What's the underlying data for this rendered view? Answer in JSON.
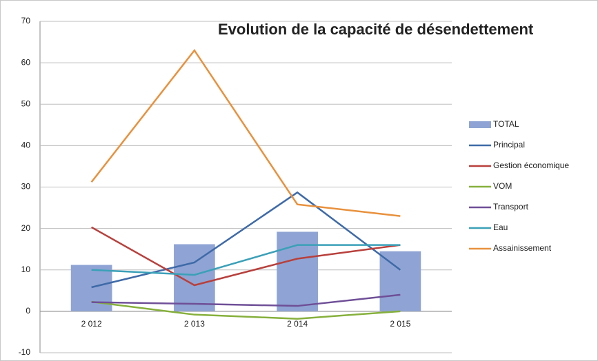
{
  "chart_data": {
    "type": "combo",
    "title": "Evolution de la capacité de désendettement",
    "categories": [
      "2 012",
      "2 013",
      "2 014",
      "2 015"
    ],
    "ylim": [
      -10,
      70
    ],
    "yticks": [
      -10,
      0,
      10,
      20,
      30,
      40,
      50,
      60,
      70
    ],
    "grid": true,
    "legend": "right",
    "series": [
      {
        "name": "TOTAL",
        "kind": "bar",
        "color": "#8fa4d4",
        "values": [
          11.2,
          16.2,
          19.2,
          14.5
        ]
      },
      {
        "name": "Principal",
        "kind": "line",
        "color": "#3e6aa8",
        "values": [
          5.8,
          11.8,
          28.7,
          10
        ]
      },
      {
        "name": "Gestion économique",
        "kind": "line",
        "color": "#b8403c",
        "values": [
          20.3,
          6.3,
          12.7,
          16
        ]
      },
      {
        "name": "VOM",
        "kind": "line",
        "color": "#86b03c",
        "values": [
          2.3,
          -0.8,
          -1.8,
          0
        ]
      },
      {
        "name": "Transport",
        "kind": "line",
        "color": "#6f4f97",
        "values": [
          2.2,
          1.8,
          1.3,
          4
        ]
      },
      {
        "name": "Eau",
        "kind": "line",
        "color": "#3ba0b8",
        "values": [
          10,
          8.8,
          16,
          16
        ]
      },
      {
        "name": "Assainissement",
        "kind": "line",
        "color": "#e8913d",
        "values": [
          31.2,
          63,
          25.8,
          23
        ]
      }
    ]
  }
}
